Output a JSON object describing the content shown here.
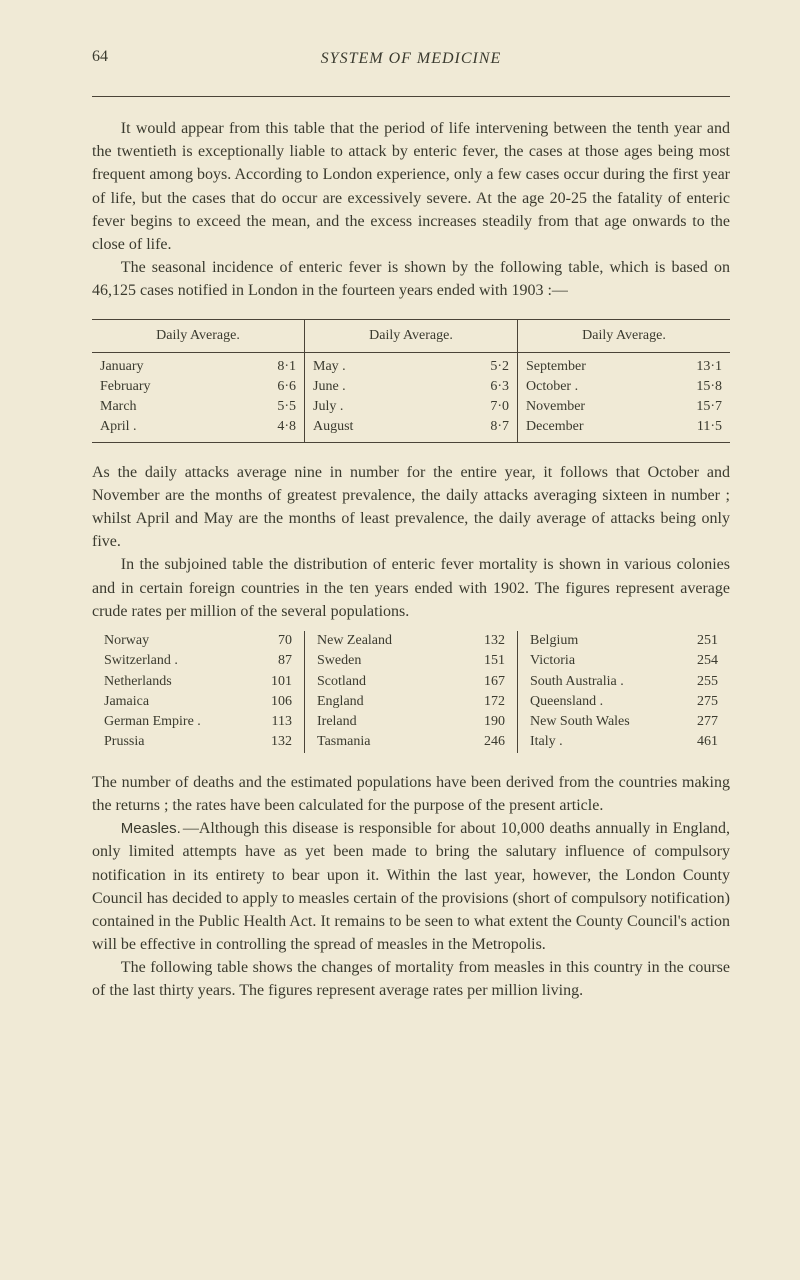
{
  "page_number": "64",
  "running_title": "SYSTEM OF MEDICINE",
  "para1": "It would appear from this table that the period of life intervening between the tenth year and the twentieth is exceptionally liable to attack by enteric fever, the cases at those ages being most frequent among boys. According to London experience, only a few cases occur during the first year of life, but the cases that do occur are excessively severe. At the age 20-25 the fatality of enteric fever begins to exceed the mean, and the excess increases steadily from that age onwards to the close of life.",
  "para2": "The seasonal incidence of enteric fever is shown by the following table, which is based on 46,125 cases notified in London in the fourteen years ended with 1903 :—",
  "table1": {
    "header": "Daily Average.",
    "col1": [
      {
        "label": "January",
        "val": "8·1"
      },
      {
        "label": "February",
        "val": "6·6"
      },
      {
        "label": "March",
        "val": "5·5"
      },
      {
        "label": "April .",
        "val": "4·8"
      }
    ],
    "col2": [
      {
        "label": "May .",
        "val": "5·2"
      },
      {
        "label": "June .",
        "val": "6·3"
      },
      {
        "label": "July .",
        "val": "7·0"
      },
      {
        "label": "August",
        "val": "8·7"
      }
    ],
    "col3": [
      {
        "label": "September",
        "val": "13·1"
      },
      {
        "label": "October .",
        "val": "15·8"
      },
      {
        "label": "November",
        "val": "15·7"
      },
      {
        "label": "December",
        "val": "11·5"
      }
    ]
  },
  "para3": "As the daily attacks average nine in number for the entire year, it follows that October and November are the months of greatest prevalence, the daily attacks averaging sixteen in number ; whilst April and May are the months of least prevalence, the daily average of attacks being only five.",
  "para4": "In the subjoined table the distribution of enteric fever mortality is shown in various colonies and in certain foreign countries in the ten years ended with 1902. The figures represent average crude rates per million of the several populations.",
  "table2": {
    "col1": [
      {
        "label": "Norway",
        "val": "70"
      },
      {
        "label": "Switzerland .",
        "val": "87"
      },
      {
        "label": "Netherlands",
        "val": "101"
      },
      {
        "label": "Jamaica",
        "val": "106"
      },
      {
        "label": "German Empire .",
        "val": "113"
      },
      {
        "label": "Prussia",
        "val": "132"
      }
    ],
    "col2": [
      {
        "label": "New Zealand",
        "val": "132"
      },
      {
        "label": "Sweden",
        "val": "151"
      },
      {
        "label": "Scotland",
        "val": "167"
      },
      {
        "label": "England",
        "val": "172"
      },
      {
        "label": "Ireland",
        "val": "190"
      },
      {
        "label": "Tasmania",
        "val": "246"
      }
    ],
    "col3": [
      {
        "label": "Belgium",
        "val": "251"
      },
      {
        "label": "Victoria",
        "val": "254"
      },
      {
        "label": "South Australia .",
        "val": "255"
      },
      {
        "label": "Queensland .",
        "val": "275"
      },
      {
        "label": "New South Wales",
        "val": "277"
      },
      {
        "label": "Italy .",
        "val": "461"
      }
    ]
  },
  "para5": "The number of deaths and the estimated populations have been derived from the countries making the returns ; the rates have been calculated for the purpose of the present article.",
  "measles_heading": "Measles.",
  "para6": "—Although this disease is responsible for about 10,000 deaths annually in England, only limited attempts have as yet been made to bring the salutary influence of compulsory notification in its entirety to bear upon it. Within the last year, however, the London County Council has decided to apply to measles certain of the provisions (short of compulsory notification) contained in the Public Health Act. It remains to be seen to what extent the County Council's action will be effective in controlling the spread of measles in the Metropolis.",
  "para7": "The following table shows the changes of mortality from measles in this country in the course of the last thirty years. The figures represent average rates per million living."
}
